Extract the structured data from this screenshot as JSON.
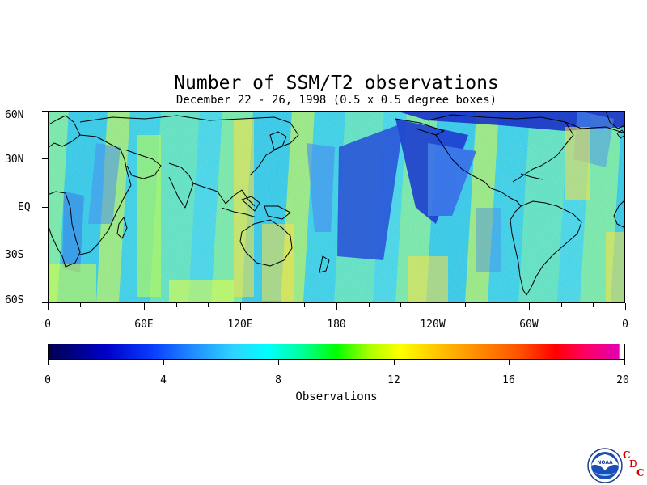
{
  "title": "Number of SSM/T2 observations",
  "subtitle": "December 22 - 26, 1998 (0.5 x 0.5 degree boxes)",
  "map": {
    "latitude_labels": [
      "60N",
      "30N",
      "EQ",
      "30S",
      "60S"
    ],
    "longitude_labels": [
      "0",
      "60E",
      "120E",
      "180",
      "120W",
      "60W",
      "0"
    ],
    "lat_range": [
      -60,
      60
    ],
    "lon_range": [
      0,
      360
    ],
    "projection": "cylindrical equidistant"
  },
  "colorbar": {
    "label": "Observations",
    "ticks": [
      "0",
      "4",
      "8",
      "12",
      "16",
      "20"
    ],
    "range": [
      0,
      20
    ],
    "colors": [
      "#000050",
      "#0000c8",
      "#1f8cff",
      "#00ffff",
      "#00ff00",
      "#ffff00",
      "#ff9000",
      "#ff0000",
      "#e000b0"
    ]
  },
  "logo": {
    "text": "NOAA",
    "letters": [
      "C",
      "D",
      "C"
    ]
  }
}
